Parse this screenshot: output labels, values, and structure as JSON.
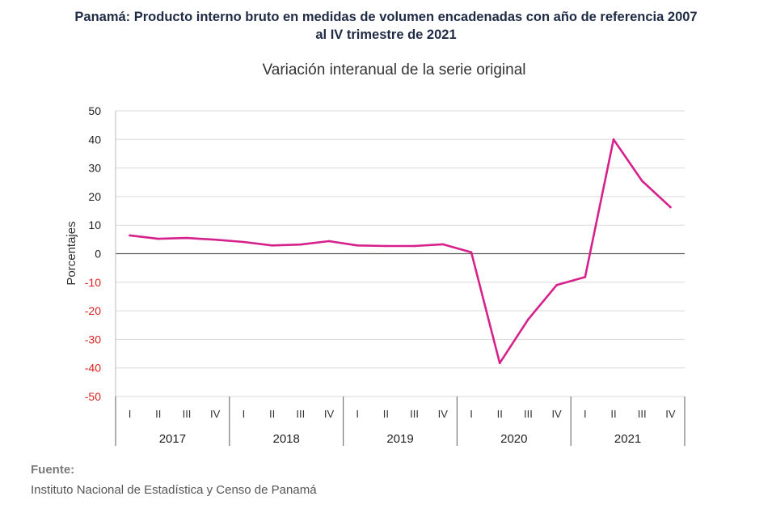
{
  "title_line1": "Panamá: Producto interno bruto en medidas  de volumen encadenadas con año de referencia 2007",
  "title_line2": "al IV trimestre de 2021",
  "subtitle": "Variación interanual de la serie original",
  "source": {
    "heading": "Fuente:",
    "text": "Instituto Nacional de Estadística y Censo de Panamá"
  },
  "colors": {
    "line": "#d6218c",
    "negative_tick": "#e02020",
    "positive_tick": "#222222",
    "grid": "#d9d9d9"
  },
  "chart_data": {
    "type": "line",
    "ylabel": "Porcentajes",
    "ylim": [
      -50,
      50
    ],
    "yticks": [
      50,
      40,
      30,
      20,
      10,
      0,
      -10,
      -20,
      -30,
      -40,
      -50
    ],
    "grid": true,
    "years": [
      "2017",
      "2018",
      "2019",
      "2020",
      "2021"
    ],
    "quarters": [
      "I",
      "II",
      "III",
      "IV"
    ],
    "series": [
      {
        "values": [
          6.4,
          5.2,
          5.5,
          4.9,
          4.1,
          2.9,
          3.2,
          4.4,
          2.9,
          2.7,
          2.7,
          3.3,
          0.5,
          -38.3,
          -23.0,
          -11.0,
          -8.2,
          40.0,
          25.5,
          16.3
        ]
      }
    ]
  }
}
